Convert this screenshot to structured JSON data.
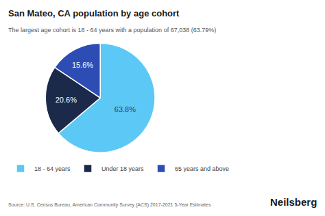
{
  "chart_data": {
    "type": "pie",
    "title": "San Mateo, CA population by age cohort",
    "subtitle": "The largest age cohort is 18 - 64 years with a population of 67,038 (63.79%)",
    "categories": [
      "18 - 64 years",
      "Under 18 years",
      "65 years and above"
    ],
    "values": [
      63.8,
      20.6,
      15.6
    ],
    "value_labels": [
      "63.8%",
      "20.6%",
      "15.6%"
    ],
    "colors": [
      "#5bc8f5",
      "#1b2a4a",
      "#2d4db5"
    ],
    "data_labels": true,
    "legend": "bottom",
    "annotations": [
      "Source: U.S. Census Bureau, American Community Survey (ACS) 2017-2021 5-Year Estimates",
      "Neilsberg"
    ]
  }
}
